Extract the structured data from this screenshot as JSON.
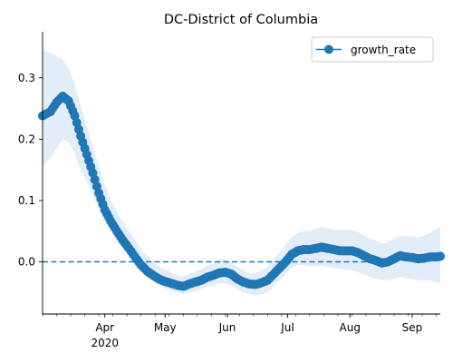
{
  "chart_data": {
    "type": "line",
    "title": "DC-District of Columbia",
    "xlabel": "",
    "ylabel": "",
    "x_range": [
      "2020-03-01",
      "2020-09-15"
    ],
    "ylim": [
      -0.085,
      0.375
    ],
    "x_tick_labels": [
      {
        "date": "2020-04-01",
        "label": "Apr",
        "sublabel": "2020"
      },
      {
        "date": "2020-05-01",
        "label": "May",
        "sublabel": ""
      },
      {
        "date": "2020-06-01",
        "label": "Jun",
        "sublabel": ""
      },
      {
        "date": "2020-07-01",
        "label": "Jul",
        "sublabel": ""
      },
      {
        "date": "2020-08-01",
        "label": "Aug",
        "sublabel": ""
      },
      {
        "date": "2020-09-01",
        "label": "Sep",
        "sublabel": ""
      }
    ],
    "y_ticks": [
      0.0,
      0.1,
      0.2,
      0.3
    ],
    "y_tick_labels": [
      "0.0",
      "0.1",
      "0.2",
      "0.3"
    ],
    "reference_line": {
      "y": 0.0,
      "style": "dashed",
      "x_end": "2020-08-10"
    },
    "legend": {
      "placement": "top-right",
      "entries": [
        "growth_rate"
      ]
    },
    "colors": {
      "line": "#1f77b4",
      "band": "#dbe8f5"
    },
    "series": [
      {
        "name": "growth_rate",
        "x": [
          "2020-03-01",
          "2020-03-05",
          "2020-03-08",
          "2020-03-11",
          "2020-03-14",
          "2020-03-17",
          "2020-03-20",
          "2020-03-23",
          "2020-03-26",
          "2020-03-29",
          "2020-04-01",
          "2020-04-04",
          "2020-04-07",
          "2020-04-10",
          "2020-04-13",
          "2020-04-16",
          "2020-04-19",
          "2020-04-22",
          "2020-04-25",
          "2020-04-28",
          "2020-05-01",
          "2020-05-04",
          "2020-05-07",
          "2020-05-10",
          "2020-05-13",
          "2020-05-16",
          "2020-05-19",
          "2020-05-22",
          "2020-05-25",
          "2020-05-28",
          "2020-05-31",
          "2020-06-03",
          "2020-06-06",
          "2020-06-09",
          "2020-06-12",
          "2020-06-15",
          "2020-06-18",
          "2020-06-21",
          "2020-06-24",
          "2020-06-27",
          "2020-06-30",
          "2020-07-03",
          "2020-07-06",
          "2020-07-09",
          "2020-07-12",
          "2020-07-15",
          "2020-07-18",
          "2020-07-21",
          "2020-07-24",
          "2020-07-27",
          "2020-07-30",
          "2020-08-02",
          "2020-08-05",
          "2020-08-08",
          "2020-08-11",
          "2020-08-14",
          "2020-08-17",
          "2020-08-20",
          "2020-08-23",
          "2020-08-26",
          "2020-08-29",
          "2020-09-01",
          "2020-09-04",
          "2020-09-07",
          "2020-09-10",
          "2020-09-13",
          "2020-09-15"
        ],
        "y": [
          0.238,
          0.245,
          0.26,
          0.27,
          0.262,
          0.238,
          0.205,
          0.175,
          0.145,
          0.112,
          0.085,
          0.066,
          0.05,
          0.035,
          0.022,
          0.008,
          -0.005,
          -0.015,
          -0.022,
          -0.028,
          -0.032,
          -0.035,
          -0.038,
          -0.04,
          -0.036,
          -0.033,
          -0.03,
          -0.025,
          -0.022,
          -0.018,
          -0.017,
          -0.02,
          -0.028,
          -0.033,
          -0.036,
          -0.037,
          -0.034,
          -0.03,
          -0.02,
          -0.01,
          0.0,
          0.012,
          0.018,
          0.02,
          0.02,
          0.022,
          0.024,
          0.022,
          0.02,
          0.018,
          0.018,
          0.018,
          0.015,
          0.01,
          0.005,
          0.002,
          -0.002,
          0.0,
          0.005,
          0.01,
          0.008,
          0.007,
          0.005,
          0.006,
          0.008,
          0.008,
          0.009
        ],
        "lower": [
          0.155,
          0.17,
          0.185,
          0.2,
          0.195,
          0.175,
          0.15,
          0.13,
          0.11,
          0.085,
          0.065,
          0.05,
          0.035,
          0.022,
          0.01,
          -0.003,
          -0.015,
          -0.025,
          -0.032,
          -0.038,
          -0.043,
          -0.047,
          -0.05,
          -0.053,
          -0.05,
          -0.048,
          -0.045,
          -0.04,
          -0.038,
          -0.035,
          -0.035,
          -0.038,
          -0.045,
          -0.05,
          -0.053,
          -0.055,
          -0.053,
          -0.05,
          -0.04,
          -0.03,
          -0.02,
          -0.01,
          -0.005,
          -0.005,
          -0.007,
          -0.007,
          -0.006,
          -0.008,
          -0.01,
          -0.012,
          -0.013,
          -0.014,
          -0.017,
          -0.02,
          -0.025,
          -0.028,
          -0.03,
          -0.03,
          -0.028,
          -0.025,
          -0.027,
          -0.028,
          -0.03,
          -0.03,
          -0.03,
          -0.033,
          -0.035
        ],
        "upper": [
          0.345,
          0.34,
          0.335,
          0.33,
          0.315,
          0.29,
          0.255,
          0.222,
          0.19,
          0.155,
          0.125,
          0.1,
          0.082,
          0.065,
          0.05,
          0.036,
          0.022,
          0.01,
          0.0,
          -0.008,
          -0.012,
          -0.017,
          -0.022,
          -0.024,
          -0.02,
          -0.016,
          -0.012,
          -0.006,
          -0.002,
          0.003,
          0.004,
          0.0,
          -0.008,
          -0.014,
          -0.018,
          -0.018,
          -0.014,
          -0.008,
          0.004,
          0.015,
          0.027,
          0.04,
          0.047,
          0.05,
          0.051,
          0.054,
          0.057,
          0.055,
          0.053,
          0.052,
          0.052,
          0.052,
          0.049,
          0.043,
          0.038,
          0.035,
          0.03,
          0.032,
          0.038,
          0.043,
          0.042,
          0.041,
          0.04,
          0.043,
          0.047,
          0.053,
          0.058
        ]
      }
    ]
  }
}
